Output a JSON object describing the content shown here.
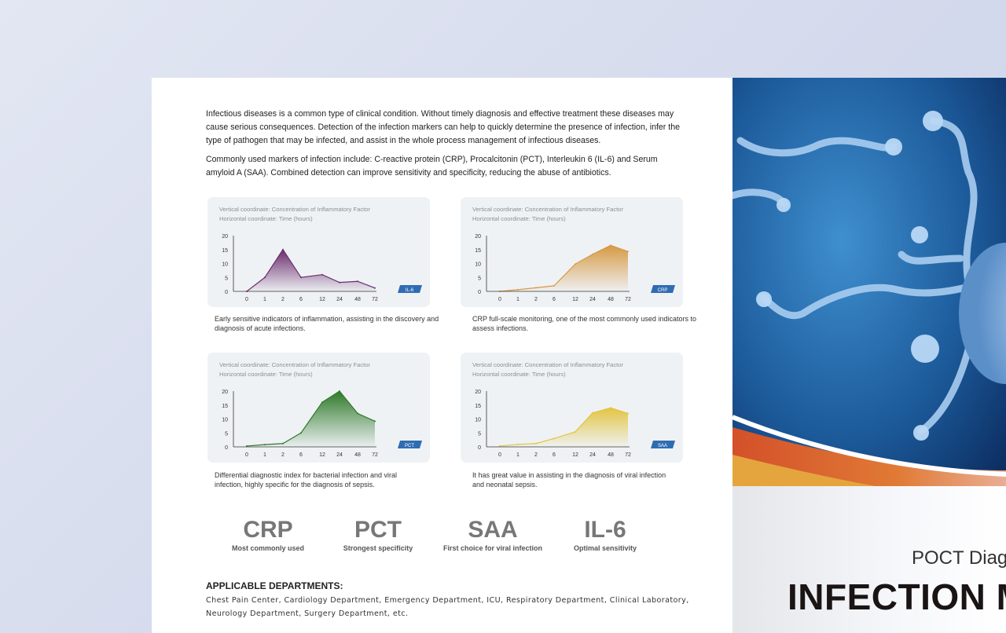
{
  "intro": {
    "p1": "Infectious diseases is a common type of clinical condition. Without timely diagnosis and effective treatment these diseases may cause serious consequences. Detection of the infection markers can help to quickly determine the presence of infection, infer the type of pathogen that may be infected, and assist in the whole process management of infectious diseases.",
    "p2": "Commonly used markers of infection include: C-reactive protein (CRP), Procalcitonin (PCT), Interleukin 6 (IL-6) and Serum amyloid A (SAA). Combined detection can improve sensitivity and specificity, reducing the abuse of antibiotics."
  },
  "chart_data": [
    {
      "type": "area",
      "tag": "IL-6",
      "caption1": "Vertical coordinate: Concentration of Inflammatory Factor",
      "caption2": "Horizontal coordinate: Time  (hours)",
      "categories": [
        "0",
        "1",
        "2",
        "6",
        "12",
        "24",
        "48",
        "72"
      ],
      "values": [
        0,
        5,
        15,
        5,
        6,
        3.2,
        3.6,
        1.2
      ],
      "yticks": [
        "0",
        "5",
        "10",
        "15",
        "20"
      ],
      "ylim": [
        0,
        20
      ],
      "color": "#6b2d6e",
      "description": "Early sensitive indicators of inflammation, assisting in the discovery and diagnosis of acute infections."
    },
    {
      "type": "area",
      "tag": "CRP",
      "caption1": "Vertical coordinate: Concentration of Inflammatory Factor",
      "caption2": "Horizontal coordinate: Time  (hours)",
      "categories": [
        "0",
        "1",
        "2",
        "6",
        "12",
        "24",
        "48",
        "72"
      ],
      "values": [
        0,
        0.6,
        1.3,
        2,
        9.8,
        13.3,
        16.5,
        14.3
      ],
      "yticks": [
        "0",
        "5",
        "10",
        "15",
        "20"
      ],
      "ylim": [
        0,
        20
      ],
      "color": "#d69a45",
      "description": "CRP full-scale monitoring, one of the most commonly used indicators to assess infections."
    },
    {
      "type": "area",
      "tag": "PCT",
      "caption1": "Vertical coordinate: Concentration of Inflammatory Factor",
      "caption2": "Horizontal coordinate: Time  (hours)",
      "categories": [
        "0",
        "1",
        "2",
        "6",
        "12",
        "24",
        "48",
        "72"
      ],
      "values": [
        0.3,
        0.8,
        1.2,
        5,
        16,
        20,
        12,
        9.2
      ],
      "yticks": [
        "0",
        "5",
        "10",
        "15",
        "20"
      ],
      "ylim": [
        0,
        20
      ],
      "color": "#2f7a2a",
      "description": "Differential diagnostic index for bacterial infection and viral infection, highly specific for the diagnosis of sepsis."
    },
    {
      "type": "area",
      "tag": "SAA",
      "caption1": "Vertical coordinate: Concentration of Inflammatory Factor",
      "caption2": "Horizontal coordinate: Time  (hours)",
      "categories": [
        "0",
        "1",
        "2",
        "6",
        "12",
        "24",
        "48",
        "72"
      ],
      "values": [
        0.3,
        0.9,
        1.2,
        3,
        5.4,
        12.2,
        14,
        12
      ],
      "yticks": [
        "0",
        "5",
        "10",
        "15",
        "20"
      ],
      "ylim": [
        0,
        20
      ],
      "color": "#e3c542",
      "description": "It has great value in assisting in the diagnosis of viral infection and neonatal sepsis."
    }
  ],
  "stats": [
    {
      "name": "CRP",
      "label": "Most commonly used"
    },
    {
      "name": "PCT",
      "label": "Strongest specificity"
    },
    {
      "name": "SAA",
      "label": "First choice for viral infection"
    },
    {
      "name": "IL-6",
      "label": "Optimal sensitivity"
    }
  ],
  "departments": {
    "heading": "APPLICABLE DEPARTMENTS:",
    "text": "Chest Pain Center, Cardiology Department, Emergency Department, ICU, Respiratory Department, Clinical Laboratory, Neurology Department, Surgery Department, etc."
  },
  "cover": {
    "subtitle": "POCT Diagn",
    "title": "INFECTION MA"
  },
  "colors": {
    "tag": "#2f6db3",
    "stat": "#777777"
  }
}
